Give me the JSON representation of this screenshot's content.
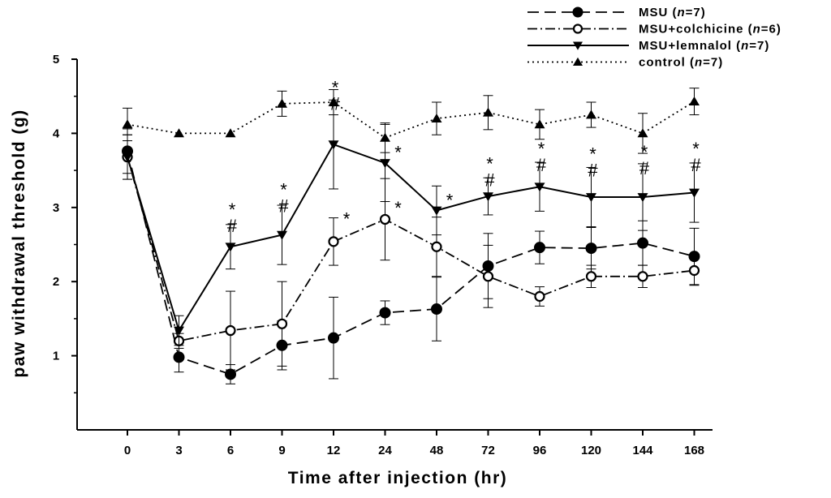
{
  "chart_data": {
    "type": "line",
    "xlabel": "Time after injection (hr)",
    "ylabel": "paw withdrawal threshold (g)",
    "categories": [
      "0",
      "3",
      "6",
      "9",
      "12",
      "24",
      "48",
      "72",
      "96",
      "120",
      "144",
      "168"
    ],
    "ylim": [
      0,
      5
    ],
    "yticks": [
      "1",
      "2",
      "3",
      "4",
      "5"
    ],
    "grid": false,
    "legend_position": "top-right",
    "series": [
      {
        "name": "MSU (n=7)",
        "legend_prefix": "MSU (",
        "legend_n": "n",
        "legend_suffix": "=7)",
        "line_style": "dashed",
        "marker": "filled-circle",
        "values": [
          3.76,
          0.98,
          0.75,
          1.14,
          1.24,
          1.58,
          1.63,
          2.21,
          2.46,
          2.45,
          2.52,
          2.34
        ],
        "errors": [
          0.3,
          0.2,
          0.13,
          0.33,
          0.55,
          0.16,
          0.43,
          0.44,
          0.22,
          0.28,
          0.3,
          0.38
        ]
      },
      {
        "name": "MSU+colchicine (n=6)",
        "legend_prefix": "MSU+colchicine (",
        "legend_n": "n",
        "legend_suffix": "=6)",
        "line_style": "dashdot",
        "marker": "open-circle",
        "values": [
          3.68,
          1.2,
          1.34,
          1.43,
          2.54,
          2.84,
          2.47,
          2.07,
          1.8,
          2.07,
          2.07,
          2.15
        ],
        "errors": [
          0.3,
          0.1,
          0.53,
          0.57,
          0.32,
          0.55,
          0.4,
          0.42,
          0.13,
          0.15,
          0.15,
          0.2
        ]
      },
      {
        "name": "MSU+lemnalol (n=7)",
        "legend_prefix": "MSU+lemnalol (",
        "legend_n": "n",
        "legend_suffix": "=7)",
        "line_style": "solid",
        "marker": "filled-triangle-down",
        "values": [
          3.68,
          1.34,
          2.47,
          2.63,
          3.85,
          3.6,
          2.96,
          3.15,
          3.28,
          3.14,
          3.14,
          3.2
        ],
        "errors": [
          0.3,
          0.2,
          0.3,
          0.4,
          0.6,
          0.52,
          0.33,
          0.25,
          0.33,
          0.4,
          0.45,
          0.4
        ]
      },
      {
        "name": "control (n=7)",
        "legend_prefix": "control (",
        "legend_n": "n",
        "legend_suffix": "=7)",
        "line_style": "dotted",
        "marker": "filled-triangle-up",
        "values": [
          4.12,
          4.0,
          4.0,
          4.4,
          4.42,
          3.94,
          4.2,
          4.28,
          4.12,
          4.25,
          4.0,
          4.43
        ],
        "errors": [
          0.22,
          0,
          0,
          0.17,
          0.17,
          0.2,
          0.22,
          0.23,
          0.2,
          0.17,
          0.27,
          0.18
        ]
      }
    ],
    "annotations": [
      {
        "category": "6",
        "star": "*",
        "hash": "#",
        "ref_value": 2.8
      },
      {
        "category": "9",
        "star": "*",
        "hash": "#",
        "ref_value": 3.07
      },
      {
        "category": "12",
        "star": "*",
        "hash": "#",
        "ref_value": 4.45
      },
      {
        "category": "12",
        "star": "*",
        "ref_value": 2.85
      },
      {
        "category": "24",
        "star": "*",
        "ref_value": 3.75
      },
      {
        "category": "24",
        "star": "*",
        "ref_value": 3.0
      },
      {
        "category": "48",
        "star": "*",
        "ref_value": 3.1
      },
      {
        "category": "72",
        "star": "*",
        "hash": "#",
        "ref_value": 3.42
      },
      {
        "category": "96",
        "star": "*",
        "hash": "#",
        "ref_value": 3.62
      },
      {
        "category": "120",
        "star": "*",
        "hash": "#",
        "ref_value": 3.55
      },
      {
        "category": "144",
        "star": "*",
        "hash": "#",
        "ref_value": 3.58
      },
      {
        "category": "168",
        "star": "*",
        "hash": "#",
        "ref_value": 3.62
      }
    ]
  }
}
